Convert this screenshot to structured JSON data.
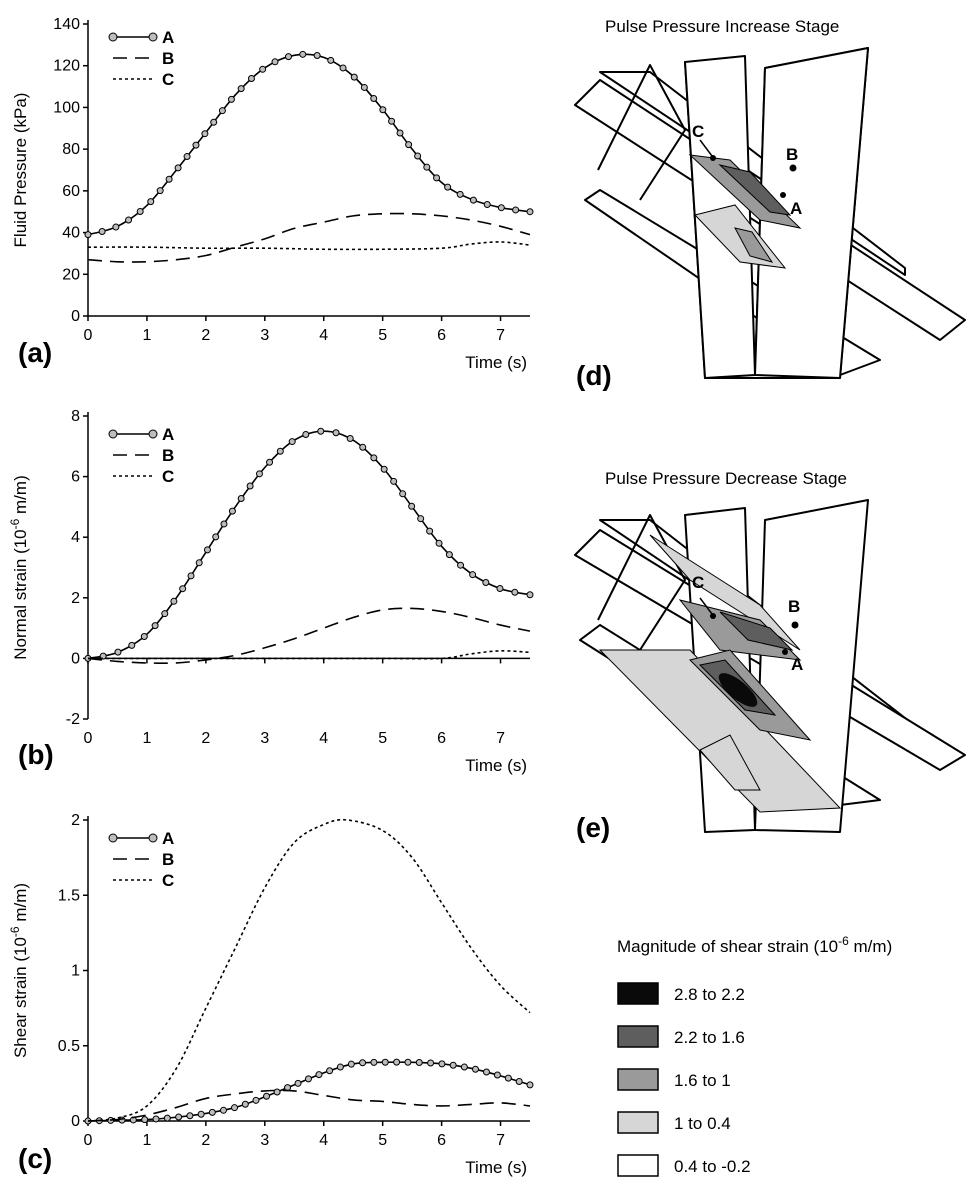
{
  "chart_data": [
    {
      "type": "line",
      "panel": "(a)",
      "xlabel": "Time (s)",
      "ylabel": "Fluid Pressure (kPa)",
      "xlim": [
        0,
        7.5
      ],
      "ylim": [
        0,
        140
      ],
      "xticks": [
        "0",
        "1",
        "2",
        "3",
        "4",
        "5",
        "6",
        "7"
      ],
      "yticks": [
        "0",
        "20",
        "40",
        "60",
        "80",
        "100",
        "120",
        "140"
      ],
      "legend_position": "top-left",
      "series": [
        {
          "name": "A",
          "style": "solid-circle",
          "x": [
            0,
            0.5,
            1,
            1.5,
            2,
            2.5,
            3,
            3.5,
            4,
            4.5,
            5,
            5.5,
            6,
            6.5,
            7,
            7.5
          ],
          "y": [
            39,
            43,
            53,
            70,
            88,
            106,
            119,
            125,
            124,
            115,
            99,
            80,
            64,
            56,
            52,
            50
          ]
        },
        {
          "name": "B",
          "style": "dashed",
          "x": [
            0,
            0.5,
            1,
            1.5,
            2,
            2.5,
            3,
            3.5,
            4,
            4.5,
            5,
            5.5,
            6,
            6.5,
            7,
            7.5
          ],
          "y": [
            27,
            26,
            26,
            27,
            29,
            33,
            37,
            42,
            45,
            48,
            49,
            49,
            48,
            46,
            43,
            39
          ]
        },
        {
          "name": "C",
          "style": "dotted",
          "x": [
            0,
            1,
            2,
            3,
            4,
            5,
            6,
            6.5,
            7,
            7.5
          ],
          "y": [
            33,
            33,
            32.5,
            32.5,
            32,
            32,
            32.5,
            34.5,
            35.5,
            34
          ]
        }
      ]
    },
    {
      "type": "line",
      "panel": "(b)",
      "xlabel": "Time (s)",
      "ylabel_main": "Normal strain (10",
      "ylabel_exp": "-6",
      "ylabel_tail": " m/m)",
      "xlim": [
        0,
        7.5
      ],
      "ylim": [
        -2,
        8
      ],
      "xticks": [
        "0",
        "1",
        "2",
        "3",
        "4",
        "5",
        "6",
        "7"
      ],
      "yticks": [
        "-2",
        "0",
        "2",
        "4",
        "6",
        "8"
      ],
      "legend_position": "top-left",
      "series": [
        {
          "name": "A",
          "style": "solid-circle",
          "x": [
            0,
            0.5,
            1,
            1.5,
            2,
            2.5,
            3,
            3.5,
            4,
            4.5,
            5,
            5.5,
            6,
            6.5,
            7,
            7.5
          ],
          "y": [
            0,
            0.2,
            0.8,
            2.0,
            3.5,
            5.0,
            6.3,
            7.2,
            7.5,
            7.2,
            6.3,
            5.0,
            3.7,
            2.8,
            2.3,
            2.1
          ]
        },
        {
          "name": "B",
          "style": "dashed",
          "x": [
            0,
            0.5,
            1,
            1.5,
            2,
            2.5,
            3,
            3.5,
            4,
            4.5,
            5,
            5.5,
            6,
            6.5,
            7,
            7.5
          ],
          "y": [
            0,
            -0.1,
            -0.15,
            -0.15,
            -0.05,
            0.1,
            0.35,
            0.65,
            1.0,
            1.35,
            1.6,
            1.65,
            1.55,
            1.35,
            1.1,
            0.9
          ]
        },
        {
          "name": "C",
          "style": "dotted",
          "x": [
            0,
            1,
            2,
            3,
            4,
            5,
            6,
            6.5,
            7,
            7.5
          ],
          "y": [
            0,
            0,
            0,
            0,
            0,
            0,
            0,
            0.15,
            0.25,
            0.2
          ]
        }
      ]
    },
    {
      "type": "line",
      "panel": "(c)",
      "xlabel": "Time (s)",
      "ylabel_main": "Shear strain (10",
      "ylabel_exp": "-6",
      "ylabel_tail": " m/m)",
      "xlim": [
        0,
        7.5
      ],
      "ylim": [
        0,
        2
      ],
      "xticks": [
        "0",
        "1",
        "2",
        "3",
        "4",
        "5",
        "6",
        "7"
      ],
      "yticks": [
        "0",
        "0.5",
        "1",
        "1.5",
        "2"
      ],
      "legend_position": "top-left",
      "series": [
        {
          "name": "A",
          "style": "solid-circle",
          "x": [
            0,
            0.5,
            1,
            1.5,
            2,
            2.5,
            3,
            3.5,
            4,
            4.5,
            5,
            5.5,
            6,
            6.5,
            7,
            7.5
          ],
          "y": [
            0,
            0.005,
            0.01,
            0.025,
            0.05,
            0.09,
            0.16,
            0.24,
            0.32,
            0.38,
            0.39,
            0.39,
            0.38,
            0.35,
            0.3,
            0.24
          ]
        },
        {
          "name": "B",
          "style": "dashed",
          "x": [
            0,
            0.5,
            1,
            1.5,
            2,
            2.5,
            3,
            3.5,
            4,
            4.5,
            5,
            5.5,
            6,
            6.5,
            7,
            7.5
          ],
          "y": [
            0,
            0.01,
            0.04,
            0.09,
            0.15,
            0.18,
            0.2,
            0.2,
            0.17,
            0.14,
            0.13,
            0.11,
            0.1,
            0.11,
            0.12,
            0.1
          ]
        },
        {
          "name": "C",
          "style": "dotted",
          "x": [
            0,
            0.5,
            1,
            1.5,
            2,
            2.5,
            3,
            3.5,
            4,
            4.4,
            5,
            5.5,
            6,
            6.5,
            7,
            7.5
          ],
          "y": [
            0,
            0.02,
            0.1,
            0.35,
            0.75,
            1.15,
            1.55,
            1.85,
            1.97,
            2.0,
            1.93,
            1.75,
            1.45,
            1.15,
            0.9,
            0.72
          ]
        }
      ]
    }
  ],
  "model_views": [
    {
      "panel": "(d)",
      "title": "Pulse Pressure Increase Stage",
      "points": [
        "A",
        "B",
        "C"
      ]
    },
    {
      "panel": "(e)",
      "title": "Pulse Pressure Decrease Stage",
      "points": [
        "A",
        "B",
        "C"
      ]
    }
  ],
  "colorbar": {
    "title_main": "Magnitude of shear strain (10",
    "title_exp": "-6",
    "title_tail": " m/m)",
    "items": [
      {
        "label": "2.8 to 2.2",
        "color": "#0a0a0a"
      },
      {
        "label": "2.2 to 1.6",
        "color": "#5e5e5e"
      },
      {
        "label": "1.6 to 1",
        "color": "#9a9a9a"
      },
      {
        "label": "1 to 0.4",
        "color": "#d6d6d6"
      },
      {
        "label": "0.4 to -0.2",
        "color": "#ffffff"
      }
    ]
  }
}
